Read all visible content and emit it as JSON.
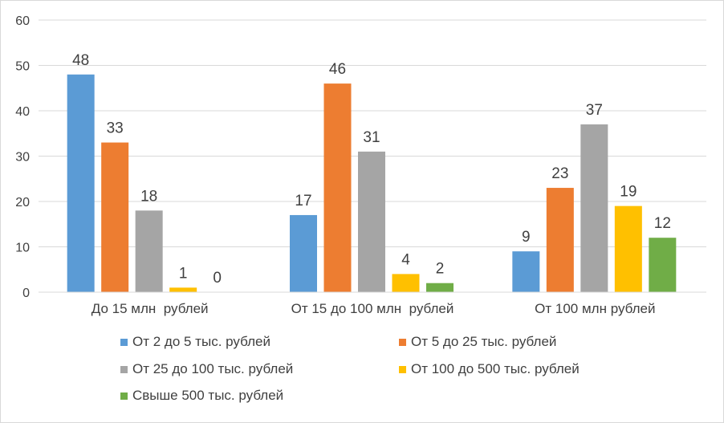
{
  "chart_data": {
    "type": "bar",
    "categories": [
      "До 15 млн  рублей",
      "От 15 до 100 млн  рублей",
      "От 100 млн рублей"
    ],
    "series": [
      {
        "name": "От 2 до 5 тыс. рублей",
        "values": [
          48,
          17,
          9
        ],
        "color": "#5b9bd5"
      },
      {
        "name": "От 5 до 25 тыс. рублей",
        "values": [
          33,
          46,
          23
        ],
        "color": "#ed7d31"
      },
      {
        "name": "От 25 до 100 тыс. рублей",
        "values": [
          18,
          31,
          37
        ],
        "color": "#a5a5a5"
      },
      {
        "name": "От 100 до 500 тыс. рублей",
        "values": [
          1,
          4,
          19
        ],
        "color": "#ffc000"
      },
      {
        "name": "Свыше 500 тыс. рублей",
        "values": [
          0,
          2,
          12
        ],
        "color": "#70ad47"
      }
    ],
    "ylim": [
      0,
      60
    ],
    "yticks": [
      0,
      10,
      20,
      30,
      40,
      50,
      60
    ],
    "grid": true,
    "legend_position": "bottom",
    "data_labels": true
  }
}
